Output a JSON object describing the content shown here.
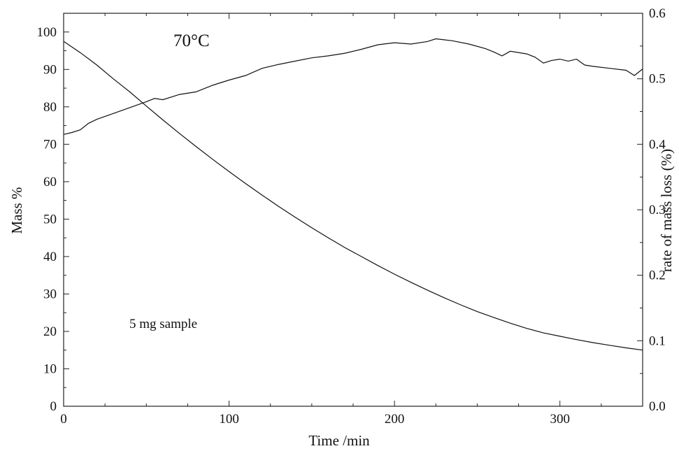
{
  "chart_data": {
    "type": "line",
    "xlabel": "Time /min",
    "ylabel": "Mass %",
    "y2label": "rate of mass loss (%)",
    "xlim": [
      0,
      350
    ],
    "ylim": [
      0,
      105
    ],
    "y2lim": [
      0,
      0.6
    ],
    "x_ticks": [
      0,
      100,
      200,
      300
    ],
    "y_ticks": [
      0,
      10,
      20,
      30,
      40,
      50,
      60,
      70,
      80,
      90,
      100
    ],
    "y2_ticks": [
      "0.0",
      "0.1",
      "0.2",
      "0.3",
      "0.4",
      "0.5",
      "0.6"
    ],
    "grid": false,
    "annotations": [
      "70°C",
      "5 mg sample"
    ],
    "series": [
      {
        "axis": "left",
        "x": [
          0,
          10,
          20,
          30,
          40,
          50,
          60,
          70,
          80,
          90,
          100,
          110,
          120,
          130,
          140,
          150,
          160,
          170,
          180,
          190,
          200,
          210,
          220,
          230,
          240,
          250,
          260,
          270,
          280,
          290,
          300,
          310,
          320,
          330,
          340,
          350
        ],
        "values": [
          97.5,
          94.5,
          91.2,
          87.5,
          84.0,
          80.2,
          76.5,
          72.9,
          69.4,
          66.0,
          62.7,
          59.5,
          56.4,
          53.4,
          50.5,
          47.7,
          45.0,
          42.4,
          40.0,
          37.6,
          35.3,
          33.1,
          31.0,
          29.0,
          27.1,
          25.3,
          23.7,
          22.2,
          20.8,
          19.6,
          18.7,
          17.8,
          17.0,
          16.3,
          15.6,
          15.0
        ]
      },
      {
        "axis": "right",
        "x": [
          0,
          5,
          10,
          15,
          20,
          30,
          40,
          50,
          55,
          60,
          70,
          80,
          90,
          100,
          110,
          120,
          130,
          140,
          150,
          160,
          170,
          180,
          190,
          200,
          210,
          220,
          225,
          235,
          245,
          255,
          260,
          265,
          270,
          280,
          285,
          290,
          295,
          300,
          305,
          310,
          315,
          320,
          330,
          340,
          345,
          350
        ],
        "values": [
          0.415,
          0.418,
          0.422,
          0.432,
          0.438,
          0.447,
          0.456,
          0.465,
          0.47,
          0.468,
          0.476,
          0.48,
          0.49,
          0.498,
          0.505,
          0.516,
          0.522,
          0.527,
          0.532,
          0.535,
          0.539,
          0.545,
          0.552,
          0.555,
          0.553,
          0.557,
          0.561,
          0.558,
          0.553,
          0.546,
          0.541,
          0.535,
          0.542,
          0.538,
          0.533,
          0.524,
          0.528,
          0.53,
          0.527,
          0.53,
          0.521,
          0.519,
          0.516,
          0.513,
          0.505,
          0.515
        ]
      }
    ]
  }
}
